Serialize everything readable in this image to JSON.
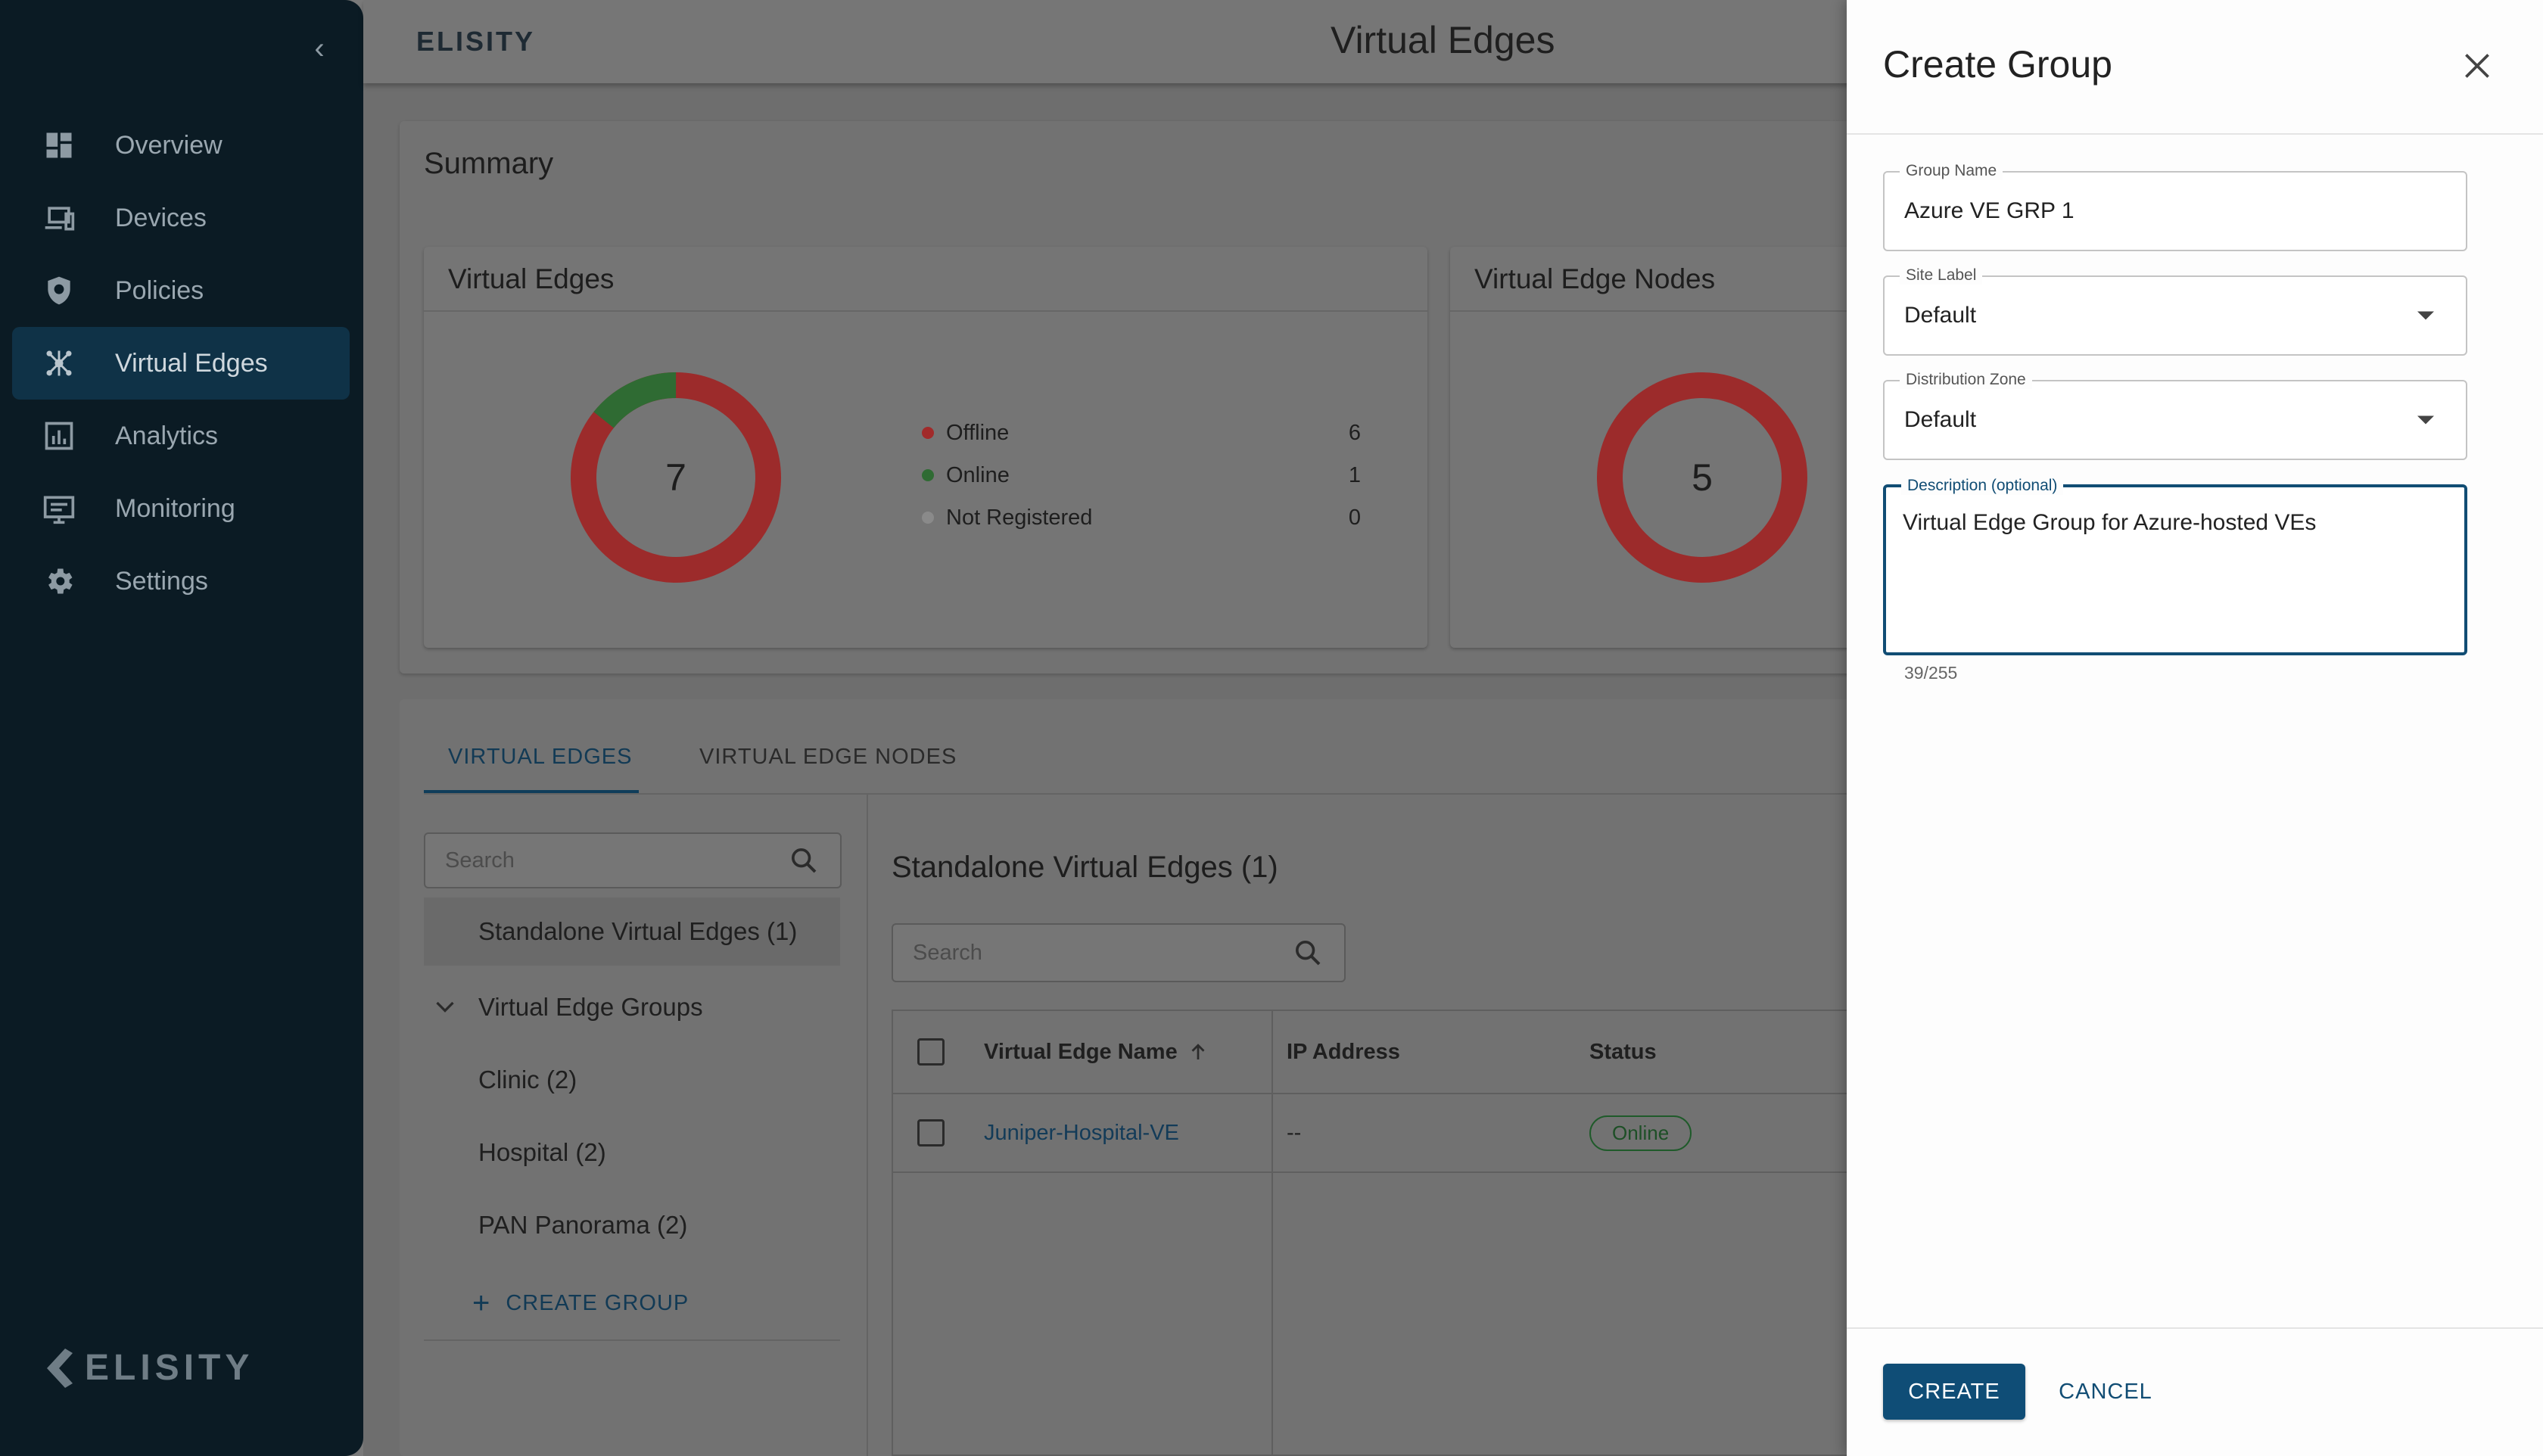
{
  "sidebar": {
    "items": [
      {
        "label": "Overview",
        "icon": "dashboard-icon"
      },
      {
        "label": "Devices",
        "icon": "devices-icon"
      },
      {
        "label": "Policies",
        "icon": "shield-icon"
      },
      {
        "label": "Virtual Edges",
        "icon": "network-hub-icon",
        "active": true
      },
      {
        "label": "Analytics",
        "icon": "bar-chart-icon"
      },
      {
        "label": "Monitoring",
        "icon": "monitor-icon"
      },
      {
        "label": "Settings",
        "icon": "gear-icon"
      }
    ],
    "footer_logo": "ELISITY"
  },
  "header": {
    "logo": "ELISITY",
    "title": "Virtual Edges"
  },
  "summary": {
    "title": "Summary",
    "virtual_edges_card": {
      "title": "Virtual Edges",
      "total": "7",
      "legend": [
        {
          "label": "Offline",
          "value": "6",
          "color": "#c62828"
        },
        {
          "label": "Online",
          "value": "1",
          "color": "#2e7d32"
        },
        {
          "label": "Not Registered",
          "value": "0",
          "color": "#9e9e9e"
        }
      ]
    },
    "nodes_card": {
      "title": "Virtual Edge Nodes",
      "total": "5"
    }
  },
  "tabs": [
    {
      "label": "VIRTUAL EDGES",
      "active": true
    },
    {
      "label": "VIRTUAL EDGE NODES",
      "active": false
    }
  ],
  "tree": {
    "search_placeholder": "Search",
    "standalone": "Standalone Virtual Edges (1)",
    "groups_label": "Virtual Edge Groups",
    "groups": [
      "Clinic (2)",
      "Hospital (2)",
      "PAN Panorama (2)"
    ],
    "create_group": "CREATE GROUP"
  },
  "list": {
    "title": "Standalone Virtual Edges (1)",
    "search_placeholder": "Search",
    "columns": [
      "Virtual Edge Name",
      "IP Address",
      "Status"
    ],
    "rows": [
      {
        "name": "Juniper-Hospital-VE",
        "ip": "--",
        "status": "Online"
      }
    ]
  },
  "drawer": {
    "title": "Create Group",
    "group_name": {
      "label": "Group Name",
      "value": "Azure VE GRP 1"
    },
    "site_label": {
      "label": "Site Label",
      "value": "Default"
    },
    "distribution_zone": {
      "label": "Distribution Zone",
      "value": "Default"
    },
    "description": {
      "label": "Description (optional)",
      "value": "Virtual Edge Group for Azure-hosted VEs",
      "counter": "39/255"
    },
    "create_label": "CREATE",
    "cancel_label": "CANCEL"
  },
  "colors": {
    "accent": "#0f4d76",
    "offline": "#c62828",
    "online": "#2e7d32",
    "sidebar_bg": "#0b1b24"
  }
}
